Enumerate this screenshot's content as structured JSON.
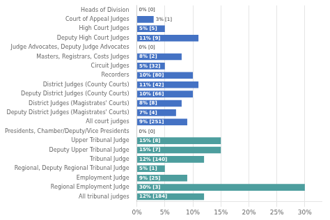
{
  "chart_data": {
    "type": "bar",
    "orientation": "horizontal",
    "categories": [
      "Heads of Division",
      "Court of Appeal Judges",
      "High Court Judges",
      "Deputy High Court Judges",
      "Judge Advocates, Deputy Judge Advocates",
      "Masters, Registrars, Costs Judges",
      "Circuit Judges",
      "Recorders",
      "District Judges (County Courts)",
      "Deputy District Judges (County Courts)",
      "District Judges (Magistrates' Courts)",
      "Deputy District Judges (Magistrates' Courts)",
      "All court judges",
      "Presidents, Chamber/Deputy/Vice Presidents",
      "Upper Tribunal Judge",
      "Deputy Upper Tribunal Judge",
      "Tribunal Judge",
      "Regional, Deputy Regional Tribunal Judge",
      "Employment Judge",
      "Regional Employment Judge",
      "All tribunal judges"
    ],
    "values": [
      0,
      3,
      5,
      11,
      0,
      8,
      5,
      10,
      11,
      10,
      8,
      7,
      9,
      0,
      15,
      15,
      12,
      5,
      9,
      30,
      12
    ],
    "value_labels": [
      "0% [0]",
      "3% [1]",
      "5% [5]",
      "11% [9]",
      "0% [0]",
      "8% [2]",
      "5% [32]",
      "10% [80]",
      "11% [42]",
      "10% [66]",
      "8% [8]",
      "7% [4]",
      "9% [251]",
      "0% [0]",
      "15% [8]",
      "15% [7]",
      "12% [140]",
      "5% [1]",
      "9% [25]",
      "30% [3]",
      "12% [184]"
    ],
    "colors": [
      "#4472c4",
      "#4472c4",
      "#4472c4",
      "#4472c4",
      "#4472c4",
      "#4472c4",
      "#4472c4",
      "#4472c4",
      "#4472c4",
      "#4472c4",
      "#4472c4",
      "#4472c4",
      "#4472c4",
      "#4d9e9e",
      "#4d9e9e",
      "#4d9e9e",
      "#4d9e9e",
      "#4d9e9e",
      "#4d9e9e",
      "#4d9e9e",
      "#4d9e9e"
    ],
    "xlim": [
      0,
      33
    ],
    "xticks": [
      {
        "value": 0,
        "label": "0%"
      },
      {
        "value": 5,
        "label": "5%"
      },
      {
        "value": 10,
        "label": "10%"
      },
      {
        "value": 15,
        "label": "15%"
      },
      {
        "value": 20,
        "label": "20%"
      },
      {
        "value": 25,
        "label": "25%"
      },
      {
        "value": 30,
        "label": "30%"
      }
    ],
    "grid": true,
    "data_labels": true
  }
}
